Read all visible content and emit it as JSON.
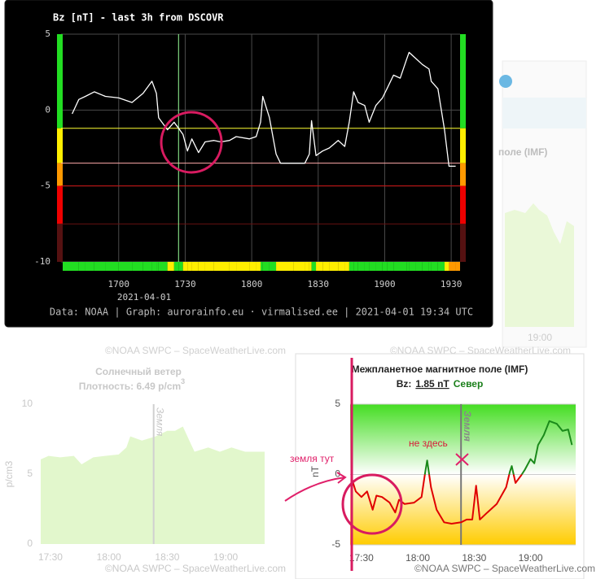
{
  "chart_data": [
    {
      "type": "line",
      "title": "Bz [nT] - last 3h from DSCOVR",
      "x": [
        999,
        1002,
        1005,
        1009,
        1014,
        1020,
        1026,
        1031,
        1035,
        1037,
        1038,
        1042,
        1045,
        1047,
        1049,
        1051,
        1053,
        1056,
        1059,
        1063,
        1066,
        1070,
        1073,
        1079,
        1082,
        1084,
        1085,
        1088,
        1091,
        1093,
        1099,
        1104,
        1106,
        1107,
        1109,
        1112,
        1115,
        1119,
        1122,
        1124,
        1126,
        1128,
        1131,
        1133,
        1136,
        1139,
        1141,
        1144,
        1147,
        1150,
        1151,
        1154,
        1157,
        1160,
        1161,
        1164,
        1167,
        1169,
        1172
      ],
      "values": [
        -0.25,
        0.7,
        0.9,
        1.2,
        0.9,
        0.8,
        0.5,
        1.1,
        1.9,
        1.1,
        -0.5,
        -1.3,
        -0.8,
        -1.2,
        -1.6,
        -2.7,
        -1.9,
        -2.8,
        -2.1,
        -2.0,
        -2.1,
        -2.0,
        -1.75,
        -1.9,
        -1.75,
        -0.8,
        0.9,
        -0.5,
        -2.9,
        -3.5,
        -3.5,
        -3.5,
        -2.9,
        -0.7,
        -3.0,
        -2.7,
        -2.5,
        -2.0,
        -2.4,
        -0.8,
        1.2,
        0.5,
        0.3,
        -0.8,
        0.3,
        0.8,
        1.4,
        2.3,
        2.1,
        3.4,
        3.8,
        3.4,
        3.0,
        2.7,
        1.9,
        1.4,
        -1.3,
        -3.7,
        -3.7
      ],
      "color": "#ffffff",
      "xlim": [
        994,
        1174
      ],
      "xticks": [
        {
          "value": 1020,
          "label": "1700"
        },
        {
          "value": 1050,
          "label": "1730"
        },
        {
          "value": 1080,
          "label": "1800"
        },
        {
          "value": 1110,
          "label": "1830"
        },
        {
          "value": 1140,
          "label": "1900"
        },
        {
          "value": 1170,
          "label": "1930"
        }
      ],
      "ylim": [
        -10,
        5
      ],
      "yticks": [
        5,
        0,
        -5,
        -10
      ],
      "grid": true,
      "thresholds": [
        {
          "value": -1.2,
          "color": "#ffff33"
        },
        {
          "value": -3.5,
          "color": "#ffaaaa"
        },
        {
          "value": -5,
          "color": "#cc1111"
        },
        {
          "value": -7.5,
          "color": "#661111"
        }
      ],
      "band_colors": [
        "#22dd22",
        "#ffee00",
        "#ff9900",
        "#ee0000",
        "#551111"
      ],
      "cursor_x": 1047,
      "date_label": "2021-04-01",
      "footer": "Data: NOAA | Graph: aurorainfo.eu · virmalised.ee | 2021-04-01 19:34 UTC"
    },
    {
      "type": "area",
      "title": "Солнечный ветер",
      "subtitle": "Плотность: 6.49 p/cm",
      "subtitle_sup": "3",
      "y_label": "p/cm3",
      "x": [
        1045,
        1049,
        1055,
        1062,
        1066,
        1072,
        1078,
        1085,
        1089,
        1091,
        1097,
        1104,
        1110,
        1114,
        1118,
        1122,
        1124,
        1131,
        1137,
        1143,
        1150,
        1156,
        1160
      ],
      "values": [
        6.05,
        6.3,
        6.2,
        6.3,
        5.7,
        6.2,
        6.3,
        6.4,
        6.9,
        7.7,
        7.4,
        7.7,
        8.1,
        8.1,
        8.4,
        7.2,
        6.6,
        6.9,
        6.6,
        6.9,
        6.6,
        6.6,
        6.6
      ],
      "color": "#e2f7cc",
      "xlim": [
        1045,
        1160
      ],
      "xticks": [
        {
          "value": 1050,
          "label": "17:30"
        },
        {
          "value": 1080,
          "label": "18:00"
        },
        {
          "value": 1110,
          "label": "18:30"
        },
        {
          "value": 1140,
          "label": "19:00"
        }
      ],
      "ylim": [
        0,
        10
      ],
      "yticks": [
        10,
        5,
        0
      ],
      "marker_x": 1103,
      "marker_label": "Земля",
      "credit": "©NOAA SWPC – SpaceWeatherLive.com"
    },
    {
      "type": "line",
      "title": "Межпланетное магнитное поле (IMF)",
      "subtitle": {
        "label": "Bz:",
        "value": "1.85 nT",
        "direction": "Север",
        "direction_color": "#1a7f1a"
      },
      "y_label": "nT",
      "x": [
        1045,
        1047,
        1050,
        1053,
        1056,
        1058,
        1061,
        1065,
        1068,
        1070,
        1073,
        1078,
        1082,
        1084,
        1085,
        1087,
        1090,
        1094,
        1098,
        1103,
        1106,
        1109,
        1111,
        1113,
        1117,
        1122,
        1127,
        1129,
        1130,
        1132,
        1135,
        1137,
        1140,
        1142,
        1144,
        1147,
        1150,
        1154,
        1157,
        1160,
        1162
      ],
      "values": [
        -0.35,
        -1.2,
        -1.6,
        -1.2,
        -2.5,
        -1.5,
        -1.6,
        -2.0,
        -2.7,
        -1.8,
        -2.1,
        -2.0,
        -1.6,
        0.2,
        1.0,
        -0.9,
        -2.5,
        -3.4,
        -3.5,
        -3.4,
        -3.2,
        -3.2,
        -0.8,
        -3.2,
        -2.7,
        -2.1,
        -0.9,
        0.2,
        0.6,
        -0.6,
        -0.06,
        0.35,
        1.1,
        0.8,
        2.1,
        2.8,
        3.8,
        3.6,
        3.1,
        3.2,
        2.1
      ],
      "color_above": "#1a8a1a",
      "color_below": "#e00000",
      "background_colors": [
        "#44dd22",
        "#ffffff",
        "#ffcc00"
      ],
      "xlim": [
        1044,
        1164
      ],
      "xticks": [
        {
          "value": 1050,
          "label": "17:30"
        },
        {
          "value": 1080,
          "label": "18:00"
        },
        {
          "value": 1110,
          "label": "18:30"
        },
        {
          "value": 1140,
          "label": "19:00"
        }
      ],
      "ylim": [
        -5,
        5
      ],
      "yticks": [
        5,
        0,
        -5
      ],
      "grid": true,
      "marker_x": 1103,
      "marker_label": "Земля",
      "annotations": [
        "не здесь",
        "земля тут"
      ],
      "credit": "©NOAA SWPC – SpaceWeatherLive.com"
    }
  ],
  "fragments": {
    "imf_title": "поле (IMF)",
    "time": "19:00",
    "credits": [
      "©NOAA SWPC – SpaceWeatherLive.com",
      "©NOAA SWPC – SpaceWeatherLive.com"
    ]
  }
}
